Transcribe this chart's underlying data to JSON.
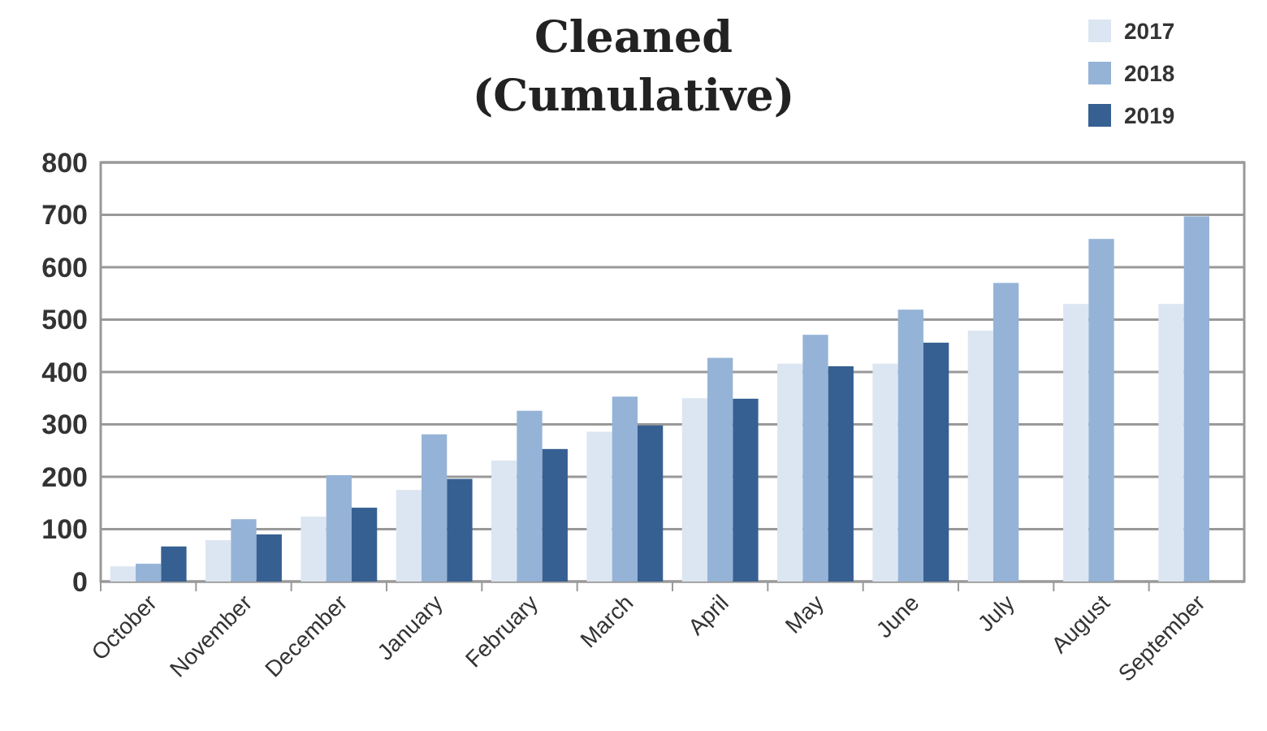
{
  "chart_data": {
    "type": "bar",
    "title": "Cleaned\n(Cumulative)",
    "categories": [
      "October",
      "November",
      "December",
      "January",
      "February",
      "March",
      "April",
      "May",
      "June",
      "July",
      "August",
      "September"
    ],
    "series": [
      {
        "name": "2017",
        "color": "#dce6f2",
        "values": [
          29,
          79,
          124,
          175,
          231,
          286,
          350,
          416,
          416,
          479,
          530,
          530
        ]
      },
      {
        "name": "2018",
        "color": "#95b3d7",
        "values": [
          34,
          119,
          203,
          281,
          326,
          353,
          427,
          471,
          519,
          570,
          654,
          697
        ]
      },
      {
        "name": "2019",
        "color": "#376092",
        "values": [
          67,
          90,
          141,
          196,
          253,
          298,
          349,
          411,
          456,
          null,
          null,
          null
        ]
      }
    ],
    "ylim": [
      0,
      800
    ],
    "yticks": [
      0,
      100,
      200,
      300,
      400,
      500,
      600,
      700,
      800
    ],
    "grid": "y",
    "legend": "top right"
  }
}
